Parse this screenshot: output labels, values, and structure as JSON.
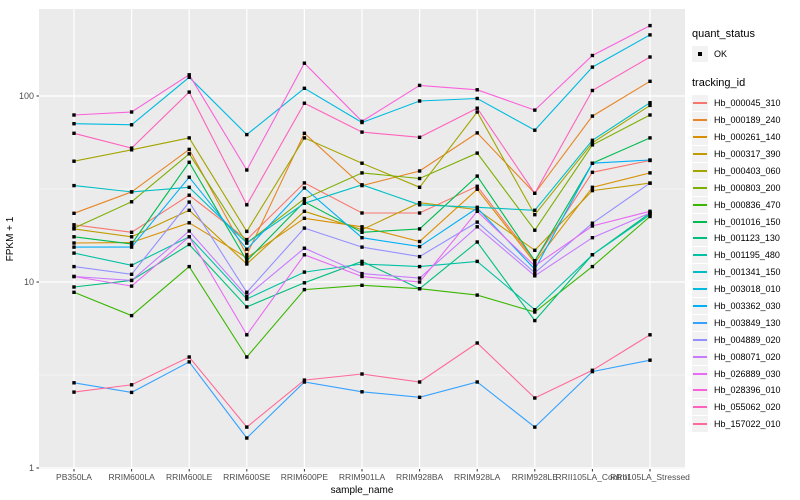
{
  "legend": {
    "quant_status_title": "quant_status",
    "ok_label": "OK",
    "tracking_id_title": "tracking_id"
  },
  "chart_data": {
    "type": "line",
    "title": "",
    "xlabel": "sample_name",
    "ylabel": "FPKM + 1",
    "y_scale": "log10",
    "y_ticks": [
      1,
      10,
      100
    ],
    "ylim": [
      1,
      290
    ],
    "grid": "on",
    "legend_position": "right",
    "panel_bg": "#EBEBEB",
    "grid_color": "#FFFFFF",
    "axis_text_color": "#4D4D4D",
    "marker": "black-square",
    "marker_color": "#000000",
    "categories": [
      "PB350LA",
      "RRIM600LA",
      "RRIM600LE",
      "RRIM600SE",
      "RRIM600PE",
      "RRIM901LA",
      "RRIM928BA",
      "RRIM928LA",
      "RRIM928LE",
      "RRII105LA_Control",
      "RRII105LA_Stressed"
    ],
    "series": [
      {
        "name": "Hb_000045_310",
        "color": "#F8766D",
        "values": [
          20.3,
          18.5,
          29.3,
          16.9,
          34.1,
          23.5,
          23.5,
          32.7,
          13.0,
          38.9,
          45.0
        ]
      },
      {
        "name": "Hb_000189_240",
        "color": "#E88526",
        "values": [
          23.4,
          30.5,
          51.6,
          14.0,
          63.0,
          33.0,
          39.5,
          63.3,
          30.0,
          78.0,
          120.0
        ]
      },
      {
        "name": "Hb_000261_140",
        "color": "#D89000",
        "values": [
          16.2,
          16.3,
          20.8,
          13.5,
          22.0,
          19.8,
          16.5,
          31.5,
          12.7,
          32.3,
          38.6
        ]
      },
      {
        "name": "Hb_000317_390",
        "color": "#C09B00",
        "values": [
          19.3,
          17.5,
          24.3,
          12.5,
          24.0,
          19.1,
          26.7,
          24.5,
          14.8,
          31.0,
          34.0
        ]
      },
      {
        "name": "Hb_000403_060",
        "color": "#A3A500",
        "values": [
          44.6,
          51.4,
          59.5,
          18.7,
          59.5,
          43.5,
          32.3,
          82.0,
          23.0,
          56.0,
          89.0
        ]
      },
      {
        "name": "Hb_000803_200",
        "color": "#7CAE00",
        "values": [
          19.5,
          27.0,
          48.9,
          16.2,
          28.0,
          38.6,
          36.0,
          49.3,
          19.0,
          54.6,
          79.0
        ]
      },
      {
        "name": "Hb_000836_470",
        "color": "#39B600",
        "values": [
          8.8,
          6.6,
          12.1,
          3.95,
          9.1,
          9.6,
          9.2,
          8.5,
          6.9,
          12.1,
          22.5
        ]
      },
      {
        "name": "Hb_001016_150",
        "color": "#00BB4E",
        "values": [
          17.5,
          16.0,
          44.0,
          13.0,
          27.0,
          18.5,
          19.3,
          37.1,
          13.0,
          43.5,
          59.5
        ]
      },
      {
        "name": "Hb_001123_130",
        "color": "#00BF7D",
        "values": [
          9.4,
          10.2,
          15.9,
          7.35,
          9.9,
          12.9,
          9.2,
          16.4,
          6.2,
          14.0,
          23.5
        ]
      },
      {
        "name": "Hb_001195_480",
        "color": "#00C1A3",
        "values": [
          14.3,
          12.3,
          17.5,
          8.1,
          11.3,
          12.5,
          12.1,
          12.9,
          7.1,
          14.0,
          23.0
        ]
      },
      {
        "name": "Hb_001341_150",
        "color": "#00BFC4",
        "values": [
          33.0,
          30.5,
          32.3,
          16.2,
          26.5,
          33.3,
          26.0,
          25.2,
          24.3,
          57.8,
          92.0
        ]
      },
      {
        "name": "Hb_003018_010",
        "color": "#00BAE0",
        "values": [
          71.0,
          70.0,
          126.0,
          62.0,
          110.0,
          72.0,
          94.0,
          97.0,
          65.5,
          143.0,
          213.0
        ]
      },
      {
        "name": "Hb_003362_030",
        "color": "#00B0F6",
        "values": [
          15.4,
          15.4,
          36.6,
          15.0,
          32.0,
          17.3,
          15.5,
          25.0,
          11.7,
          43.5,
          45.3
        ]
      },
      {
        "name": "Hb_003849_130",
        "color": "#35A2FF",
        "values": [
          2.87,
          2.55,
          3.72,
          1.45,
          2.9,
          2.57,
          2.4,
          2.9,
          1.66,
          3.3,
          3.8
        ]
      },
      {
        "name": "Hb_004889_020",
        "color": "#9590FF",
        "values": [
          12.1,
          11.0,
          26.9,
          8.8,
          19.5,
          15.4,
          13.7,
          21.0,
          11.2,
          20.7,
          34.0
        ]
      },
      {
        "name": "Hb_008071_020",
        "color": "#C77CFF",
        "values": [
          10.7,
          10.2,
          18.8,
          8.4,
          15.2,
          11.1,
          10.5,
          19.8,
          10.8,
          17.3,
          23.5
        ]
      },
      {
        "name": "Hb_026889_030",
        "color": "#E76BF3",
        "values": [
          10.7,
          9.5,
          17.5,
          5.2,
          14.0,
          10.7,
          10.0,
          24.0,
          12.2,
          20.0,
          24.0
        ]
      },
      {
        "name": "Hb_028396_010",
        "color": "#FA62DB",
        "values": [
          79.0,
          82.0,
          130.0,
          40.0,
          150.0,
          73.0,
          114.0,
          108.0,
          84.0,
          165.0,
          239.0
        ]
      },
      {
        "name": "Hb_055062_020",
        "color": "#FF62BC",
        "values": [
          63.0,
          52.5,
          105.0,
          26.0,
          91.5,
          64.0,
          60.0,
          86.0,
          30.0,
          107.0,
          162.0
        ]
      },
      {
        "name": "Hb_157022_010",
        "color": "#FF6A98",
        "values": [
          2.56,
          2.8,
          3.95,
          1.66,
          2.97,
          3.2,
          2.9,
          4.7,
          2.38,
          3.35,
          5.2
        ]
      }
    ]
  }
}
